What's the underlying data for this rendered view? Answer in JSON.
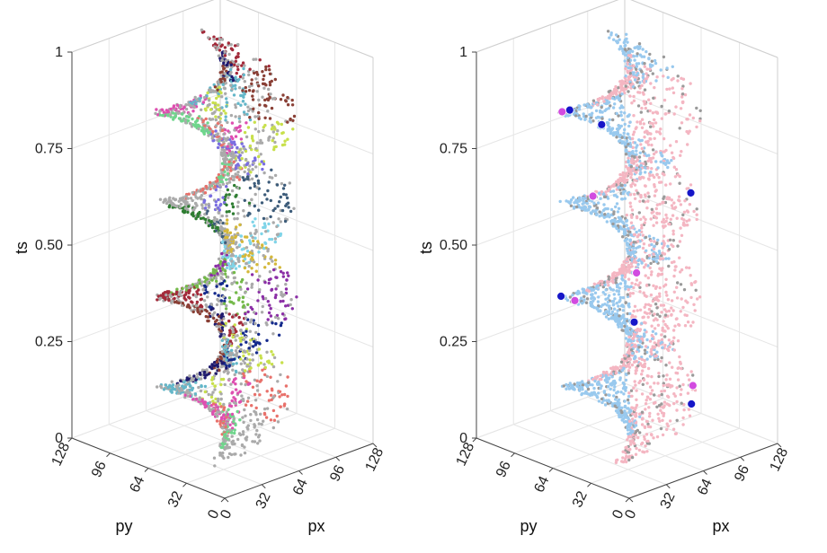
{
  "chart_data": [
    {
      "type": "scatter",
      "subtype": "3d-scatter",
      "title": "",
      "xlabel": "px",
      "ylabel": "py",
      "zlabel": "ts",
      "xlim": [
        0,
        128
      ],
      "ylim": [
        0,
        128
      ],
      "zlim": [
        0,
        1
      ],
      "x_ticks": [
        "0",
        "32",
        "64",
        "96",
        "128"
      ],
      "y_ticks": [
        "0",
        "32",
        "64",
        "96",
        "128"
      ],
      "z_ticks": [
        "0",
        "0.25",
        "0.50",
        "0.75",
        "1"
      ],
      "grid": true,
      "legend": "none",
      "description_of_data": "Points lie on a single twisted helical ribbon surface rising in ts; coloured by cluster",
      "series": [
        {
          "color": "#aaaaaa"
        },
        {
          "color": "#6fd68c"
        },
        {
          "color": "#e8716b"
        },
        {
          "color": "#de4fb0"
        },
        {
          "color": "#c8e04c"
        },
        {
          "color": "#64b7c9"
        },
        {
          "color": "#8a4036"
        },
        {
          "color": "#1f1a6e"
        },
        {
          "color": "#a22a3a"
        },
        {
          "color": "#142a8c"
        },
        {
          "color": "#74b94a"
        },
        {
          "color": "#8b2fa6"
        },
        {
          "color": "#7fd4e8"
        },
        {
          "color": "#d4b83a"
        },
        {
          "color": "#3d5c7a"
        },
        {
          "color": "#2f7d32"
        },
        {
          "color": "#7a6ee0"
        }
      ]
    },
    {
      "type": "scatter",
      "subtype": "3d-scatter",
      "title": "",
      "xlabel": "px",
      "ylabel": "py",
      "zlabel": "ts",
      "xlim": [
        0,
        128
      ],
      "ylim": [
        0,
        128
      ],
      "zlim": [
        0,
        1
      ],
      "x_ticks": [
        "0",
        "32",
        "64",
        "96",
        "128"
      ],
      "y_ticks": [
        "0",
        "32",
        "64",
        "96",
        "128"
      ],
      "z_ticks": [
        "0",
        "0.25",
        "0.50",
        "0.75",
        "1"
      ],
      "grid": true,
      "legend": "none",
      "description_of_data": "Same helical ribbon; two colour groups plus highlighted marker points",
      "series": [
        {
          "color": "#f4b6c2"
        },
        {
          "color": "#99c9ee"
        },
        {
          "color": "#9a9a9a"
        }
      ],
      "highlight_points": [
        {
          "color": "#1616c8",
          "count": 7
        },
        {
          "color": "#d24be0",
          "count": 5
        }
      ]
    }
  ]
}
